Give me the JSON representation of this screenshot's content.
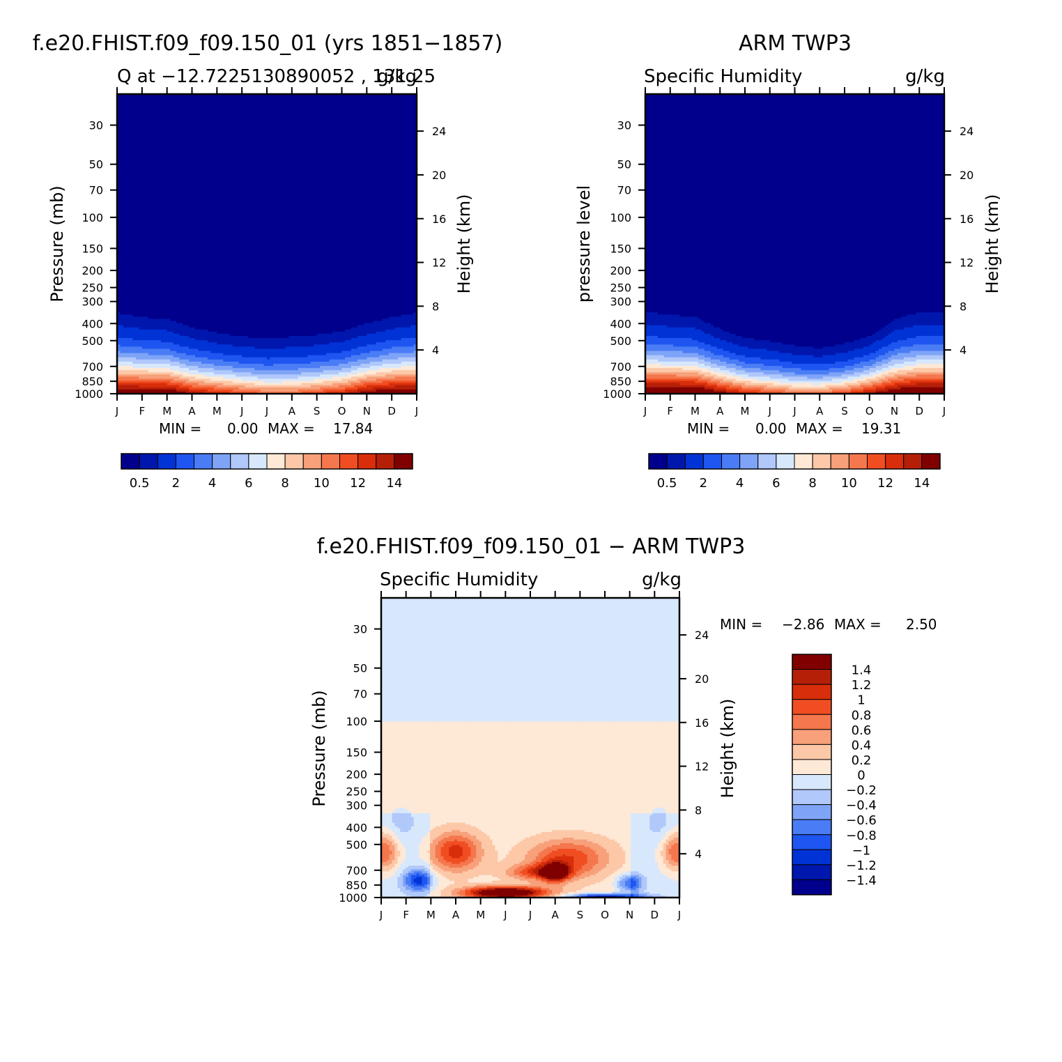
{
  "panels": [
    {
      "id": "model",
      "title": "f.e20.FHIST.f09_f09.150_01 (yrs 1851−1857)",
      "subtitle_left": "Q at −12.7225130890052 , 131.25",
      "subtitle_right": "g/kg",
      "ylabel": "Pressure (mb)",
      "ylabel_right": "Height (km)",
      "min_text": "MIN =",
      "min_value": "0.00",
      "max_text": "MAX =",
      "max_value": "17.84"
    },
    {
      "id": "obs",
      "title": "ARM TWP3",
      "subtitle_left": "Specific Humidity",
      "subtitle_right": "g/kg",
      "ylabel": "pressure level",
      "ylabel_right": "Height (km)",
      "min_text": "MIN =",
      "min_value": "0.00",
      "max_text": "MAX =",
      "max_value": "19.31"
    },
    {
      "id": "diff",
      "title": "f.e20.FHIST.f09_f09.150_01 − ARM TWP3",
      "subtitle_left": "Specific Humidity",
      "subtitle_right": "g/kg",
      "ylabel": "Pressure (mb)",
      "ylabel_right": "Height (km)",
      "min_text": "MIN =",
      "min_value": "−2.86",
      "max_text": "MAX =",
      "max_value": "2.50"
    }
  ],
  "axes": {
    "months": [
      "J",
      "F",
      "M",
      "A",
      "M",
      "J",
      "J",
      "A",
      "S",
      "O",
      "N",
      "D",
      "J"
    ],
    "pressure_ticks": [
      30,
      50,
      70,
      100,
      150,
      200,
      250,
      300,
      400,
      500,
      700,
      850,
      1000
    ],
    "pressure_range": [
      20,
      1000
    ],
    "height_ticks": [
      4,
      8,
      12,
      16,
      20,
      24
    ],
    "scale": "log-pressure"
  },
  "colorbar_abs": {
    "colors": [
      "#00008c",
      "#0017ad",
      "#0033d6",
      "#1f55f0",
      "#4a7cf5",
      "#7fa4f7",
      "#b0c8fa",
      "#d8e8fc",
      "#fee8d6",
      "#fcc8a8",
      "#f7a07a",
      "#f5774d",
      "#f04e22",
      "#d92e0b",
      "#b51f08",
      "#800000"
    ],
    "tick_labels": [
      "0.5",
      "2",
      "4",
      "6",
      "8",
      "10",
      "12",
      "14"
    ]
  },
  "colorbar_diff": {
    "colors": [
      "#800000",
      "#b51f08",
      "#d92e0b",
      "#f04e22",
      "#f5774d",
      "#f7a07a",
      "#fcc8a8",
      "#fee8d6",
      "#d8e8fc",
      "#b0c8fa",
      "#7fa4f7",
      "#4a7cf5",
      "#1f55f0",
      "#0033d6",
      "#0017ad",
      "#00008c"
    ],
    "labels": [
      "1.4",
      "1.2",
      "1",
      "0.8",
      "0.6",
      "0.4",
      "0.2",
      "0",
      "−0.2",
      "−0.4",
      "−0.6",
      "−0.8",
      "−1",
      "−1.2",
      "−1.4"
    ]
  },
  "chart_data": [
    {
      "type": "heatmap",
      "title": "f.e20.FHIST.f09_f09.150_01 (yrs 1851−1857)",
      "variable": "Q",
      "units": "g/kg",
      "x": "month (J–J)",
      "y": "pressure (mb), log scale, 1000 at bottom",
      "ylim_mb": [
        1000,
        20
      ],
      "min": 0.0,
      "max": 17.84,
      "notes_values": {
        "near_surface_1000mb": [
          16,
          16,
          16,
          14,
          13,
          12,
          11,
          11,
          12,
          13,
          15,
          16,
          16
        ],
        "dry_above_mb": [
          300,
          320,
          330,
          370,
          400,
          420,
          430,
          420,
          410,
          390,
          350,
          320,
          300
        ]
      }
    },
    {
      "type": "heatmap",
      "title": "ARM TWP3",
      "variable": "Specific Humidity",
      "units": "g/kg",
      "ylim_mb": [
        1000,
        20
      ],
      "min": 0.0,
      "max": 19.31,
      "notes_values": {
        "near_surface_1000mb": [
          17,
          17,
          17,
          15,
          13,
          12,
          11,
          11,
          12,
          14,
          16,
          17,
          17
        ],
        "dry_above_mb": [
          300,
          310,
          320,
          380,
          430,
          450,
          480,
          500,
          470,
          420,
          330,
          300,
          300
        ]
      }
    },
    {
      "type": "heatmap",
      "title": "f.e20.FHIST.f09_f09.150_01 − ARM TWP3",
      "variable": "Specific Humidity difference",
      "units": "g/kg",
      "ylim_mb": [
        1000,
        20
      ],
      "min": -2.86,
      "max": 2.5
    }
  ]
}
